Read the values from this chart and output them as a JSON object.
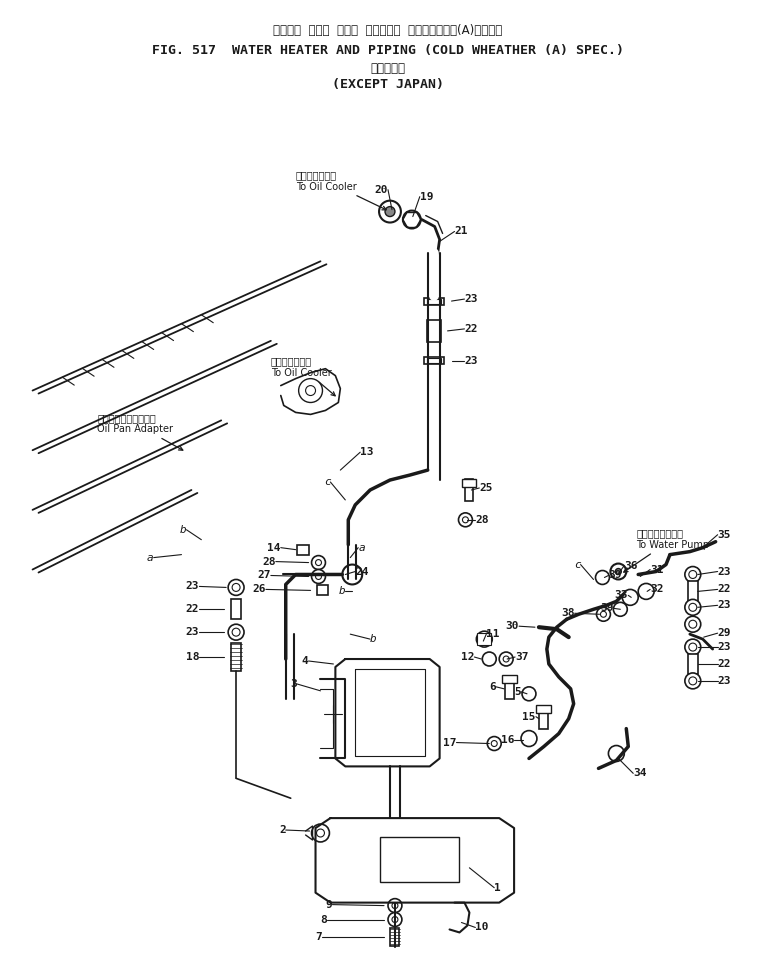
{
  "title_line1": "ウォータ  ヒータ  および  パイピング  　寒　冷　地　(A)　仕　機",
  "title_line2": "FIG. 517  WATER HEATER AND PIPING (COLD WHEATHER (A) SPEC.)",
  "title_line3": "海　外　向",
  "title_line4": "(EXCEPT JAPAN)",
  "bg_color": "#ffffff",
  "lc": "#1a1a1a",
  "tc": "#1a1a1a"
}
